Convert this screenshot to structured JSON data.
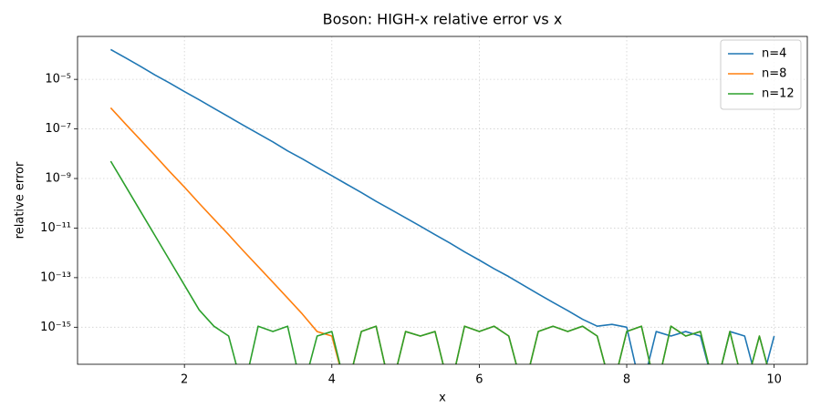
{
  "chart_data": {
    "type": "line",
    "title": "Boson: HIGH-x relative error vs x",
    "x_label": "x",
    "y_label": "relative error",
    "yscale": "log",
    "grid": true,
    "legend": "upper right",
    "x": [
      1.0,
      1.2,
      1.4,
      1.6,
      1.8,
      2.0,
      2.2,
      2.4,
      2.6,
      2.8,
      3.0,
      3.2,
      3.4,
      3.6,
      3.8,
      4.0,
      4.2,
      4.4,
      4.6,
      4.8,
      5.0,
      5.2,
      5.4,
      5.6,
      5.8,
      6.0,
      6.2,
      6.4,
      6.6,
      6.8,
      7.0,
      7.2,
      7.4,
      7.6,
      7.8,
      8.0,
      8.2,
      8.4,
      8.6,
      8.8,
      9.0,
      9.2,
      9.4,
      9.6,
      9.8,
      10.0
    ],
    "series": [
      {
        "name": "n=4",
        "color": "#1f77b4",
        "values": [
          0.00016,
          7.4e-05,
          3.4e-05,
          1.5e-05,
          7.1e-06,
          3.2e-06,
          1.5e-06,
          6.8e-07,
          3.1e-07,
          1.4e-07,
          6.5e-08,
          3e-08,
          1.3e-08,
          6.2e-09,
          2.8e-09,
          1.3e-09,
          5.9e-10,
          2.7e-10,
          1.2e-10,
          5.6e-11,
          2.6e-11,
          1.2e-11,
          5.4e-12,
          2.5e-12,
          1.1e-12,
          5.1e-13,
          2.3e-13,
          1.1e-13,
          4.9e-14,
          2.2e-14,
          1e-14,
          4.7e-15,
          2.1e-15,
          1.1e-15,
          1.3e-15,
          1e-15,
          0,
          6.7e-16,
          4.4e-16,
          6.7e-16,
          4.4e-16,
          0,
          6.7e-16,
          4.4e-16,
          0,
          4.4e-16
        ]
      },
      {
        "name": "n=8",
        "color": "#ff7f0e",
        "values": [
          7.1e-07,
          1.6e-07,
          3.7e-08,
          8.5e-09,
          1.9e-09,
          4.5e-10,
          1e-10,
          2.3e-11,
          5.4e-12,
          1.2e-12,
          2.8e-13,
          6.5e-14,
          1.5e-14,
          3.4e-15,
          6.7e-16,
          4.4e-16,
          0,
          6.7e-16,
          1.1e-15,
          0,
          6.7e-16,
          4.4e-16,
          6.7e-16,
          0,
          1.1e-15,
          6.7e-16,
          1.1e-15,
          4.4e-16,
          0,
          6.7e-16,
          1.1e-15,
          6.7e-16,
          1.1e-15,
          4.4e-16,
          0,
          6.7e-16,
          1.1e-15,
          0,
          1.1e-15,
          4.4e-16,
          6.7e-16,
          0,
          6.7e-16,
          0,
          4.4e-16,
          0
        ]
      },
      {
        "name": "n=12",
        "color": "#2ca02c",
        "values": [
          5e-09,
          5e-10,
          5e-11,
          5e-12,
          5e-13,
          5e-14,
          5e-15,
          1.1e-15,
          4.4e-16,
          0,
          1.1e-15,
          6.7e-16,
          1.1e-15,
          0,
          4.4e-16,
          6.7e-16,
          0,
          6.7e-16,
          1.1e-15,
          0,
          6.7e-16,
          4.4e-16,
          6.7e-16,
          0,
          1.1e-15,
          6.7e-16,
          1.1e-15,
          4.4e-16,
          0,
          6.7e-16,
          1.1e-15,
          6.7e-16,
          1.1e-15,
          4.4e-16,
          0,
          6.7e-16,
          1.1e-15,
          0,
          1.1e-15,
          4.4e-16,
          6.7e-16,
          0,
          6.7e-16,
          0,
          4.4e-16,
          0
        ]
      }
    ],
    "xlim": [
      0.55,
      10.45
    ],
    "xticks": [
      2,
      4,
      6,
      8,
      10
    ],
    "ylim": [
      3.2e-17,
      0.00054
    ],
    "yticks": [
      {
        "value": 1e-05,
        "label": "10⁻⁵"
      },
      {
        "value": 1e-07,
        "label": "10⁻⁷"
      },
      {
        "value": 1e-09,
        "label": "10⁻⁹"
      },
      {
        "value": 1e-11,
        "label": "10⁻¹¹"
      },
      {
        "value": 1e-13,
        "label": "10⁻¹³"
      },
      {
        "value": 1e-15,
        "label": "10⁻¹⁵"
      }
    ]
  }
}
